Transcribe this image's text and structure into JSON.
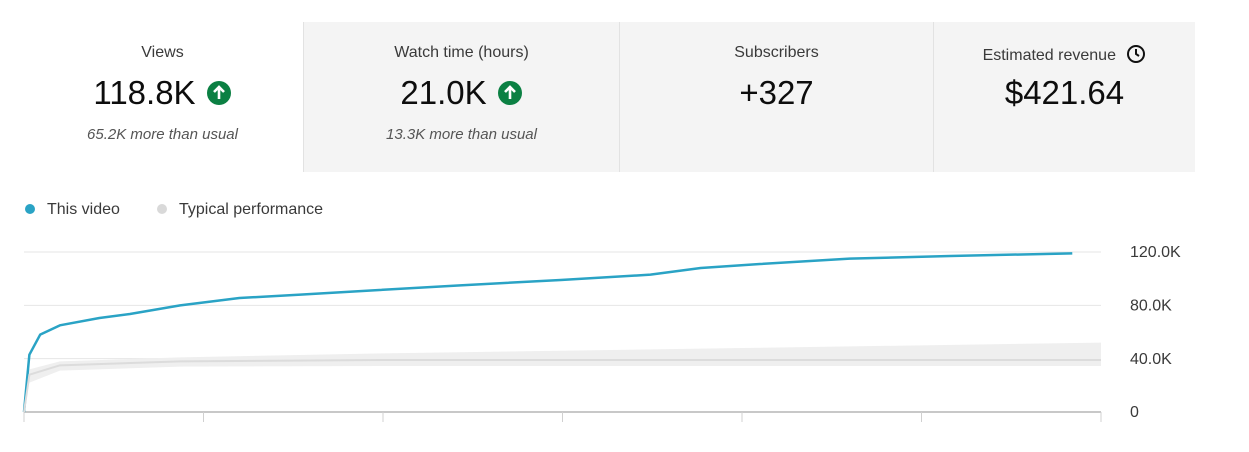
{
  "cards": [
    {
      "label": "Views",
      "value": "118.8K",
      "note": "65.2K more than usual"
    },
    {
      "label": "Watch time (hours)",
      "value": "21.0K",
      "note": "13.3K more than usual"
    },
    {
      "label": "Subscribers",
      "value": "+327"
    },
    {
      "label": "Estimated revenue",
      "value": "$421.64"
    }
  ],
  "chart_data": {
    "type": "line",
    "xlim": [
      0,
      6
    ],
    "xticks": [
      0,
      1,
      2,
      3,
      4,
      5,
      6
    ],
    "ylim": [
      0,
      120000
    ],
    "yticks": [
      0,
      {
        "value": 40000,
        "label": "40.0K"
      },
      {
        "value": 80000,
        "label": "80.0K"
      },
      {
        "value": 120000,
        "label": "120.0K"
      }
    ],
    "grid": true,
    "legend": "top-left",
    "series": [
      {
        "name": "This video",
        "color": "#2aa3c5",
        "x": [
          0,
          0.03,
          0.09,
          0.2,
          0.42,
          0.59,
          0.87,
          1.2,
          1.54,
          1.98,
          2.43,
          2.99,
          3.49,
          3.77,
          4.1,
          4.6,
          5.16,
          5.84
        ],
        "values": [
          0,
          43000,
          58000,
          65000,
          70500,
          73500,
          80000,
          85500,
          88000,
          91500,
          95000,
          99000,
          103000,
          108000,
          111000,
          115000,
          117000,
          119000
        ]
      },
      {
        "name": "Typical performance",
        "color": "#d9d9d9",
        "x": [
          0,
          0.03,
          0.2,
          0.87,
          2,
          4,
          6
        ],
        "values": [
          0,
          28000,
          35000,
          38000,
          39000,
          39000,
          39000
        ],
        "low": [
          0,
          22000,
          31000,
          34000,
          34500,
          34500,
          34500
        ],
        "high": [
          0,
          32000,
          38000,
          41000,
          44000,
          48000,
          52000
        ]
      }
    ]
  }
}
